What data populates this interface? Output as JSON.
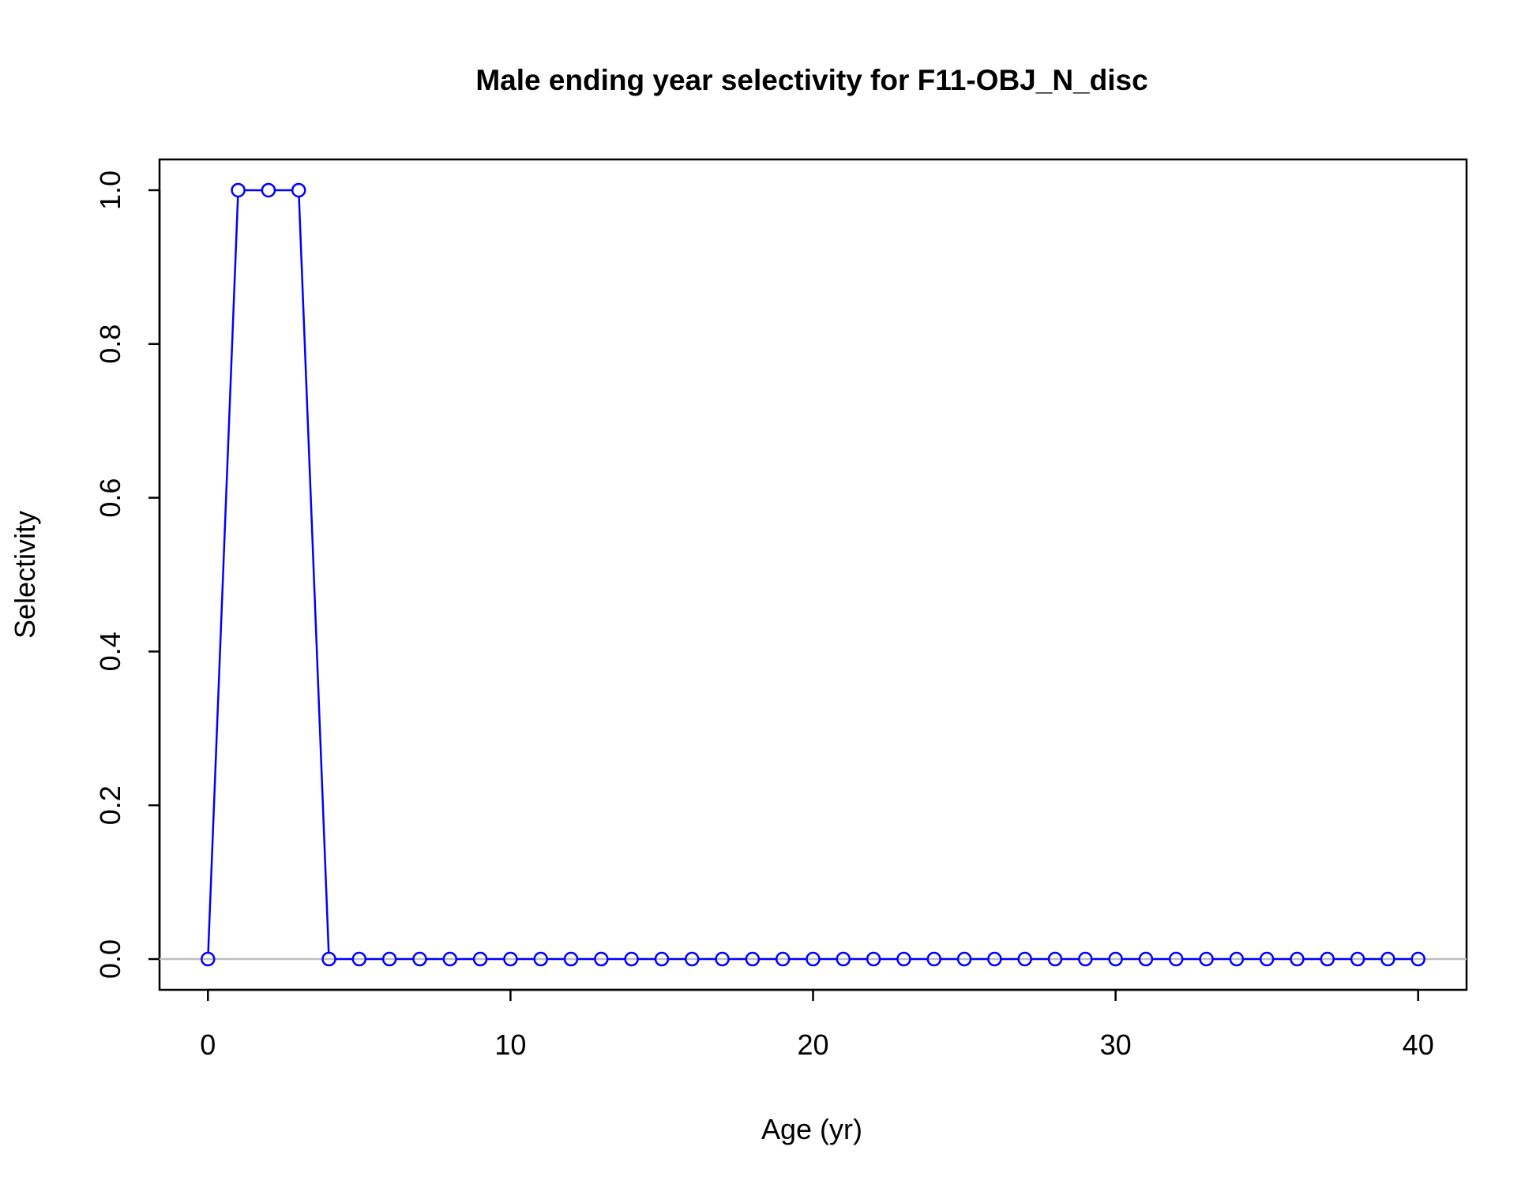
{
  "chart_data": {
    "type": "line",
    "title": "Male ending year selectivity for F11-OBJ_N_disc",
    "xlabel": "Age (yr)",
    "ylabel": "Selectivity",
    "xlim": [
      -1.6,
      41.6
    ],
    "ylim": [
      -0.04,
      1.04
    ],
    "x_ticks": [
      0,
      10,
      20,
      30,
      40
    ],
    "x_tick_labels": [
      "0",
      "10",
      "20",
      "30",
      "40"
    ],
    "y_ticks": [
      0,
      0.2,
      0.4,
      0.6,
      0.8,
      1.0
    ],
    "y_tick_labels": [
      "0.0",
      "0.2",
      "0.4",
      "0.6",
      "0.8",
      "1.0"
    ],
    "reference_line": {
      "y": 0,
      "color": "#bebebe"
    },
    "grid": false,
    "series": [
      {
        "color": "#0000ff",
        "marker": "open-circle",
        "x": [
          0,
          1,
          2,
          3,
          4,
          5,
          6,
          7,
          8,
          9,
          10,
          11,
          12,
          13,
          14,
          15,
          16,
          17,
          18,
          19,
          20,
          21,
          22,
          23,
          24,
          25,
          26,
          27,
          28,
          29,
          30,
          31,
          32,
          33,
          34,
          35,
          36,
          37,
          38,
          39,
          40
        ],
        "values": [
          0,
          1,
          1,
          1,
          0,
          0,
          0,
          0,
          0,
          0,
          0,
          0,
          0,
          0,
          0,
          0,
          0,
          0,
          0,
          0,
          0,
          0,
          0,
          0,
          0,
          0,
          0,
          0,
          0,
          0,
          0,
          0,
          0,
          0,
          0,
          0,
          0,
          0,
          0,
          0,
          0
        ]
      }
    ]
  }
}
